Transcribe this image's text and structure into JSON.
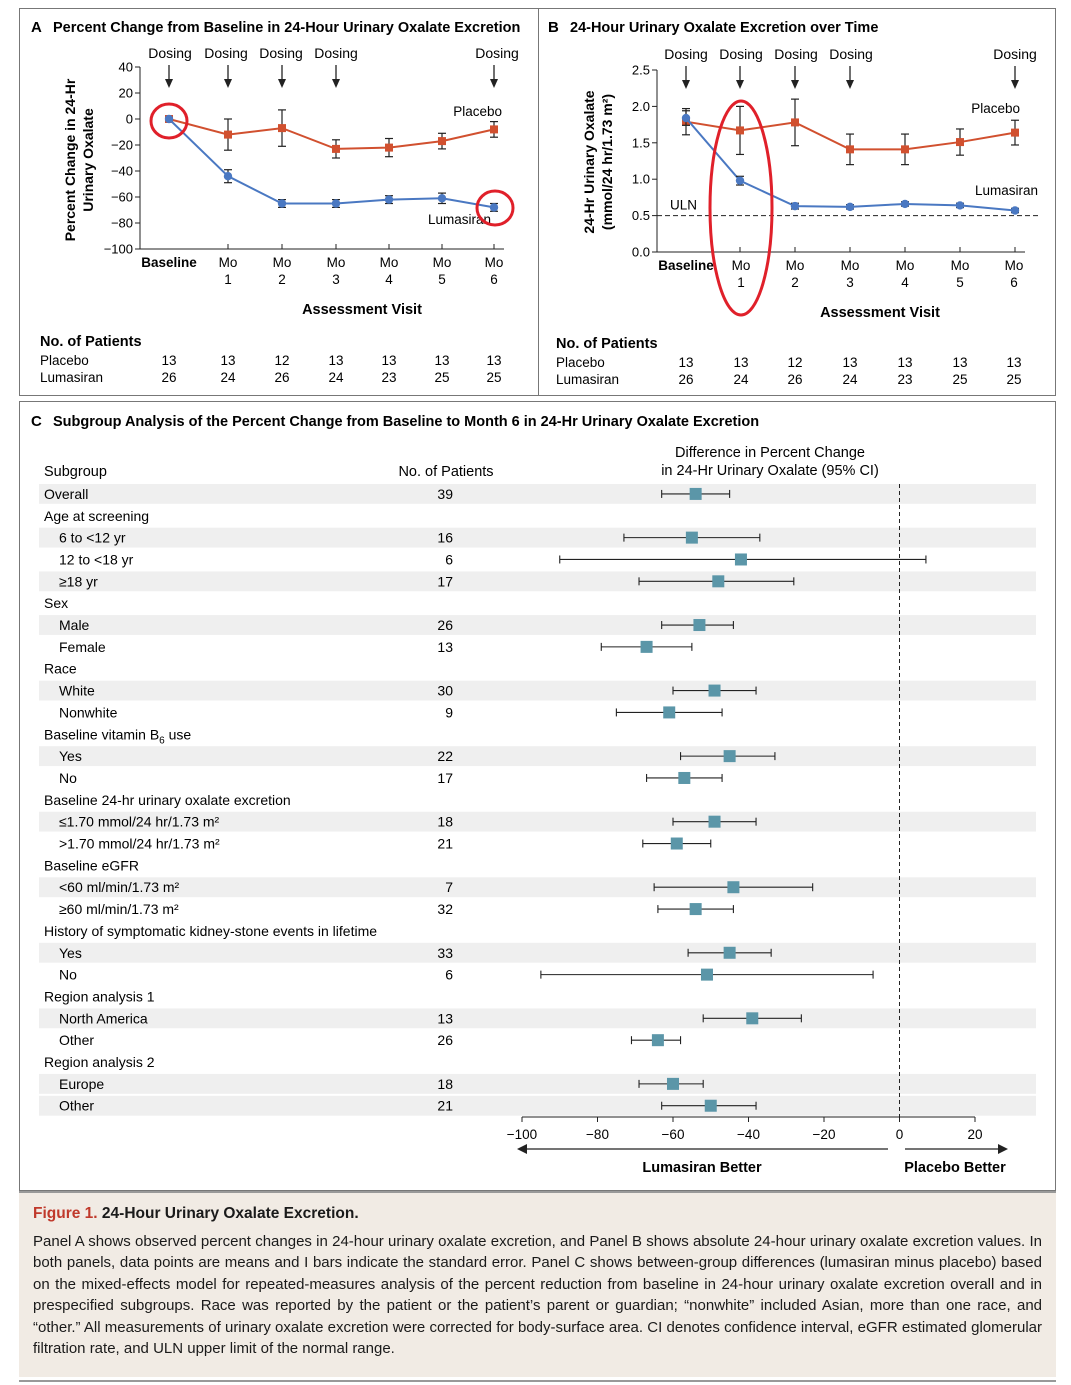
{
  "panel_a": {
    "letter": "A",
    "title": "Percent Change from Baseline in 24-Hour Urinary Oxalate Excretion",
    "ylabel": [
      "Percent Change in 24-Hr",
      "Urinary Oxalate"
    ],
    "xlabel": "Assessment Visit",
    "dosing_label": "Dosing",
    "placebo_label": "Placebo",
    "lumasiran_label": "Lumasiran",
    "x_ticks": [
      [
        "Baseline"
      ],
      [
        "Mo",
        "1"
      ],
      [
        "Mo",
        "2"
      ],
      [
        "Mo",
        "3"
      ],
      [
        "Mo",
        "4"
      ],
      [
        "Mo",
        "5"
      ],
      [
        "Mo",
        "6"
      ]
    ],
    "y_ticks": [
      "40",
      "20",
      "0",
      "−20",
      "−40",
      "−60",
      "−80",
      "−100"
    ],
    "patients_title": "No. of Patients",
    "patients": [
      {
        "name": "Placebo",
        "counts": [
          "13",
          "13",
          "12",
          "13",
          "13",
          "13",
          "13"
        ]
      },
      {
        "name": "Lumasiran",
        "counts": [
          "26",
          "24",
          "26",
          "24",
          "23",
          "25",
          "25"
        ]
      }
    ]
  },
  "panel_b": {
    "letter": "B",
    "title": "24-Hour Urinary Oxalate Excretion over Time",
    "ylabel": [
      "24-Hr Urinary Oxalate",
      "(mmol/24 hr/1.73 m²)"
    ],
    "xlabel": "Assessment Visit",
    "dosing_label": "Dosing",
    "placebo_label": "Placebo",
    "lumasiran_label": "Lumasiran",
    "uln_label": "ULN",
    "x_ticks": [
      [
        "Baseline"
      ],
      [
        "Mo",
        "1"
      ],
      [
        "Mo",
        "2"
      ],
      [
        "Mo",
        "3"
      ],
      [
        "Mo",
        "4"
      ],
      [
        "Mo",
        "5"
      ],
      [
        "Mo",
        "6"
      ]
    ],
    "y_ticks": [
      "2.5",
      "2.0",
      "1.5",
      "1.0",
      "0.5",
      "0.0"
    ],
    "patients_title": "No. of Patients",
    "patients": [
      {
        "name": "Placebo",
        "counts": [
          "13",
          "13",
          "12",
          "13",
          "13",
          "13",
          "13"
        ]
      },
      {
        "name": "Lumasiran",
        "counts": [
          "26",
          "24",
          "26",
          "24",
          "23",
          "25",
          "25"
        ]
      }
    ]
  },
  "panel_c": {
    "letter": "C",
    "title": "Subgroup Analysis of the Percent Change from Baseline to Month 6 in 24-Hr Urinary Oxalate Excretion",
    "col_subgroup": "Subgroup",
    "col_patients": "No. of Patients",
    "col_diff": [
      "Difference in Percent Change",
      "in 24-Hr Urinary Oxalate (95% CI)"
    ],
    "x_ticks": [
      "−100",
      "−80",
      "−60",
      "−40",
      "−20",
      "0",
      "20"
    ],
    "left_arrow_label": "Lumasiran Better",
    "right_arrow_label": "Placebo Better",
    "rows": [
      {
        "label": "Overall",
        "n": "39",
        "est": -54,
        "lo": -63,
        "hi": -45,
        "indent": 0,
        "header": false,
        "shade": true
      },
      {
        "label": "Age at screening",
        "n": "",
        "header": true,
        "indent": 0,
        "shade": false
      },
      {
        "label": "6 to <12 yr",
        "n": "16",
        "est": -55,
        "lo": -73,
        "hi": -37,
        "indent": 1,
        "header": false,
        "shade": true
      },
      {
        "label": "12 to <18 yr",
        "n": "6",
        "est": -42,
        "lo": -90,
        "hi": 7,
        "indent": 1,
        "header": false,
        "shade": false
      },
      {
        "label": "≥18 yr",
        "n": "17",
        "est": -48,
        "lo": -69,
        "hi": -28,
        "indent": 1,
        "header": false,
        "shade": true
      },
      {
        "label": "Sex",
        "n": "",
        "header": true,
        "indent": 0,
        "shade": false
      },
      {
        "label": "Male",
        "n": "26",
        "est": -53,
        "lo": -63,
        "hi": -44,
        "indent": 1,
        "header": false,
        "shade": true
      },
      {
        "label": "Female",
        "n": "13",
        "est": -67,
        "lo": -79,
        "hi": -55,
        "indent": 1,
        "header": false,
        "shade": false
      },
      {
        "label": "Race",
        "n": "",
        "header": true,
        "indent": 0,
        "shade": false
      },
      {
        "label": "White",
        "n": "30",
        "est": -49,
        "lo": -60,
        "hi": -38,
        "indent": 1,
        "header": false,
        "shade": true
      },
      {
        "label": "Nonwhite",
        "n": "9",
        "est": -61,
        "lo": -75,
        "hi": -47,
        "indent": 1,
        "header": false,
        "shade": false
      },
      {
        "label": "Baseline vitamin B",
        "sub": "6",
        "suffix": " use",
        "n": "",
        "header": true,
        "indent": 0,
        "shade": false
      },
      {
        "label": "Yes",
        "n": "22",
        "est": -45,
        "lo": -58,
        "hi": -33,
        "indent": 1,
        "header": false,
        "shade": true
      },
      {
        "label": "No",
        "n": "17",
        "est": -57,
        "lo": -67,
        "hi": -47,
        "indent": 1,
        "header": false,
        "shade": false
      },
      {
        "label": "Baseline 24-hr urinary oxalate excretion",
        "n": "",
        "header": true,
        "indent": 0,
        "shade": false
      },
      {
        "label": "≤1.70 mmol/24 hr/1.73 m²",
        "n": "18",
        "est": -49,
        "lo": -60,
        "hi": -38,
        "indent": 1,
        "header": false,
        "shade": true
      },
      {
        "label": ">1.70 mmol/24 hr/1.73 m²",
        "n": "21",
        "est": -59,
        "lo": -68,
        "hi": -50,
        "indent": 1,
        "header": false,
        "shade": false
      },
      {
        "label": "Baseline eGFR",
        "n": "",
        "header": true,
        "indent": 0,
        "shade": false
      },
      {
        "label": "<60 ml/min/1.73 m²",
        "n": "7",
        "est": -44,
        "lo": -65,
        "hi": -23,
        "indent": 1,
        "header": false,
        "shade": true
      },
      {
        "label": "≥60 ml/min/1.73 m²",
        "n": "32",
        "est": -54,
        "lo": -64,
        "hi": -44,
        "indent": 1,
        "header": false,
        "shade": false
      },
      {
        "label": "History of symptomatic kidney-stone events in lifetime",
        "n": "",
        "header": true,
        "indent": 0,
        "shade": false
      },
      {
        "label": "Yes",
        "n": "33",
        "est": -45,
        "lo": -56,
        "hi": -34,
        "indent": 1,
        "header": false,
        "shade": true
      },
      {
        "label": "No",
        "n": "6",
        "est": -51,
        "lo": -95,
        "hi": -7,
        "indent": 1,
        "header": false,
        "shade": false
      },
      {
        "label": "Region analysis 1",
        "n": "",
        "header": true,
        "indent": 0,
        "shade": false
      },
      {
        "label": "North America",
        "n": "13",
        "est": -39,
        "lo": -52,
        "hi": -26,
        "indent": 1,
        "header": false,
        "shade": true
      },
      {
        "label": "Other",
        "n": "26",
        "est": -64,
        "lo": -71,
        "hi": -58,
        "indent": 1,
        "header": false,
        "shade": false
      },
      {
        "label": "Region analysis 2",
        "n": "",
        "header": true,
        "indent": 0,
        "shade": false
      },
      {
        "label": "Europe",
        "n": "18",
        "est": -60,
        "lo": -69,
        "hi": -52,
        "indent": 1,
        "header": false,
        "shade": true
      },
      {
        "label": "Other",
        "n": "21",
        "est": -50,
        "lo": -63,
        "hi": -38,
        "indent": 1,
        "header": false,
        "shade": true
      }
    ]
  },
  "caption": {
    "figure_number": "Figure 1.",
    "figure_title": "24-Hour Urinary Oxalate Excretion.",
    "body": "Panel A shows observed percent changes in 24-hour urinary oxalate excretion, and Panel B shows absolute 24-hour urinary oxalate excretion values. In both panels, data points are means and I bars indicate the standard error. Panel C shows between-group differences (lumasiran minus placebo) based on the mixed-effects model for repeated-measures analysis of the percent reduction from baseline in 24-hour urinary oxalate excretion overall and in prespecified subgroups. Race was reported by the patient or the patient’s parent or guardian; “nonwhite” included Asian, more than one race, and “other.” All measurements of urinary oxalate excretion were corrected for body-surface area. CI denotes confidence interval, eGFR estimated glomerular filtration rate, and ULN upper limit of the normal range."
  },
  "colors": {
    "placebo": "#d1502f",
    "lumasiran": "#4a78c2",
    "highlight": "#e0202a",
    "marker": "#5b96a8",
    "shade": "#efefef",
    "caption_bg": "#f1ebe4",
    "caption_accent": "#c0392b"
  },
  "chart_data": [
    {
      "type": "line",
      "panel": "A",
      "title": "Percent Change from Baseline in 24-Hour Urinary Oxalate Excretion",
      "xlabel": "Assessment Visit",
      "ylabel": "Percent Change in 24-Hr Urinary Oxalate",
      "categories": [
        "Baseline",
        "Mo 1",
        "Mo 2",
        "Mo 3",
        "Mo 4",
        "Mo 5",
        "Mo 6"
      ],
      "ylim": [
        -100,
        40
      ],
      "dosing_visits": [
        0,
        1,
        2,
        3,
        6
      ],
      "series": [
        {
          "name": "Placebo",
          "values": [
            0,
            -12,
            -7,
            -23,
            -22,
            -17,
            -8
          ],
          "err": [
            0,
            12,
            14,
            7,
            7,
            6,
            6
          ]
        },
        {
          "name": "Lumasiran",
          "values": [
            0,
            -44,
            -65,
            -65,
            -62,
            -61,
            -68
          ],
          "err": [
            0,
            5,
            3,
            3,
            3,
            4,
            3
          ]
        }
      ]
    },
    {
      "type": "line",
      "panel": "B",
      "title": "24-Hour Urinary Oxalate Excretion over Time",
      "xlabel": "Assessment Visit",
      "ylabel": "24-Hr Urinary Oxalate (mmol/24 hr/1.73 m²)",
      "categories": [
        "Baseline",
        "Mo 1",
        "Mo 2",
        "Mo 3",
        "Mo 4",
        "Mo 5",
        "Mo 6"
      ],
      "ylim": [
        0,
        2.5
      ],
      "uln": 0.5,
      "dosing_visits": [
        0,
        1,
        2,
        3,
        6
      ],
      "series": [
        {
          "name": "Placebo",
          "values": [
            1.79,
            1.67,
            1.78,
            1.41,
            1.41,
            1.51,
            1.64
          ],
          "err": [
            0.18,
            0.33,
            0.32,
            0.21,
            0.21,
            0.18,
            0.17
          ]
        },
        {
          "name": "Lumasiran",
          "values": [
            1.84,
            0.98,
            0.63,
            0.62,
            0.66,
            0.64,
            0.57
          ],
          "err": [
            0.1,
            0.06,
            0.04,
            0.03,
            0.03,
            0.03,
            0.03
          ]
        }
      ]
    },
    {
      "type": "forest",
      "panel": "C",
      "title": "Subgroup Analysis of the Percent Change from Baseline to Month 6 in 24-Hr Urinary Oxalate Excretion",
      "xlim": [
        -100,
        20
      ],
      "reference_line": 0
    }
  ]
}
